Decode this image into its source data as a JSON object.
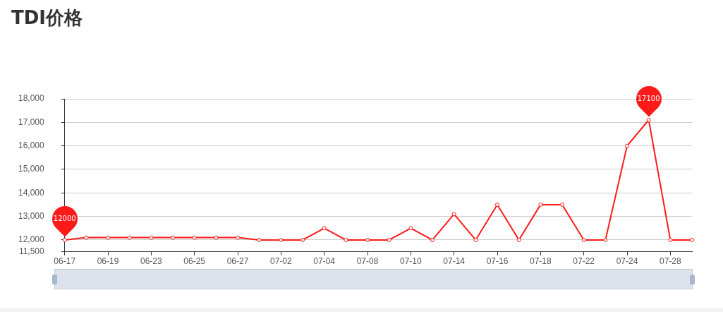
{
  "chart_data": {
    "type": "line",
    "title": "TDI价格",
    "categories": [
      "06-17",
      null,
      "06-19",
      null,
      "06-23",
      null,
      "06-25",
      null,
      "06-27",
      null,
      "07-02",
      null,
      "07-04",
      null,
      "07-08",
      null,
      "07-10",
      null,
      "07-14",
      null,
      "07-16",
      null,
      "07-18",
      null,
      "07-22",
      null,
      "07-24",
      null,
      "07-28",
      null
    ],
    "series": [
      {
        "color": "#ff1a1a",
        "values": [
          12000,
          12100,
          12100,
          12100,
          12100,
          12100,
          12100,
          12100,
          12100,
          12000,
          12000,
          12000,
          12500,
          12000,
          12000,
          12000,
          12500,
          12000,
          13100,
          12000,
          13500,
          12000,
          13500,
          13500,
          12000,
          12000,
          16000,
          17100,
          12000,
          12000
        ]
      }
    ],
    "ylim": [
      11500,
      18000
    ],
    "yticks": [
      {
        "value": 11500,
        "label": "11,500"
      },
      {
        "value": 12000,
        "label": "12,000"
      },
      {
        "value": 13000,
        "label": "13,000"
      },
      {
        "value": 14000,
        "label": "14,000"
      },
      {
        "value": 15000,
        "label": "15,000"
      },
      {
        "value": 16000,
        "label": "16,000"
      },
      {
        "value": 17000,
        "label": "17,000"
      },
      {
        "value": 18000,
        "label": "18,000"
      }
    ],
    "annotations": [
      {
        "text": "12000",
        "x": "06-17",
        "y": 12000
      },
      {
        "text": "17100",
        "y": 17100
      }
    ],
    "grid": "y",
    "legend": false,
    "marker": "circle",
    "line_style": "solid"
  }
}
